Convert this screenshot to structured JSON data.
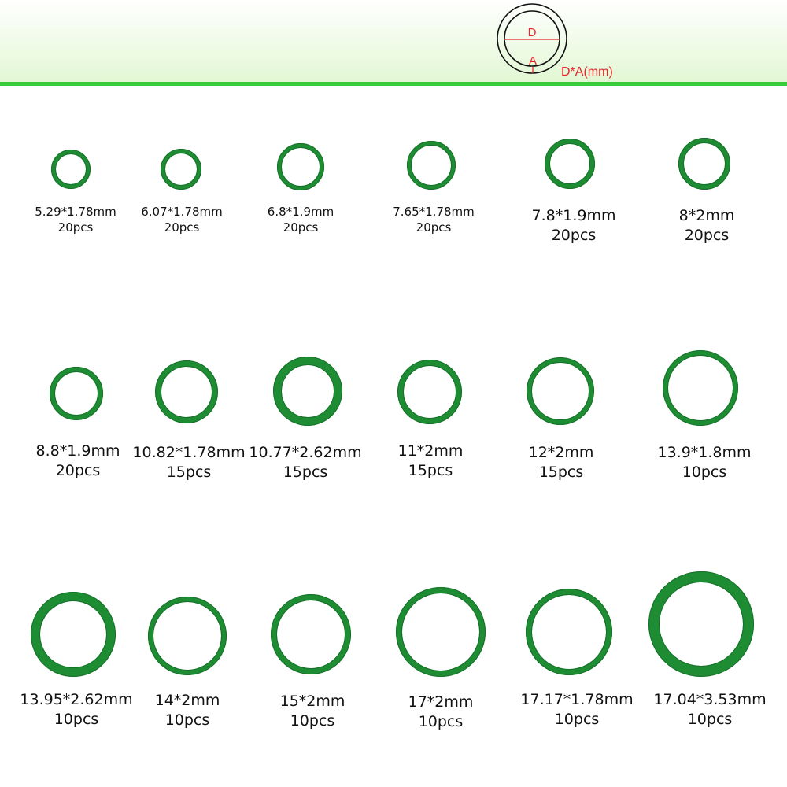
{
  "legend": {
    "diameter_symbol": "D",
    "thickness_symbol": "A",
    "formula": "D*A(mm)",
    "accent_color": "#e8262c"
  },
  "ring_color": "#1e8c32",
  "header_line_color": "#37cc3a",
  "items": [
    {
      "size": "5.29*1.78mm",
      "qty": "20pcs"
    },
    {
      "size": "6.07*1.78mm",
      "qty": "20pcs"
    },
    {
      "size": "6.8*1.9mm",
      "qty": "20pcs"
    },
    {
      "size": "7.65*1.78mm",
      "qty": "20pcs"
    },
    {
      "size": "7.8*1.9mm",
      "qty": "20pcs"
    },
    {
      "size": "8*2mm",
      "qty": "20pcs"
    },
    {
      "size": "8.8*1.9mm",
      "qty": "20pcs"
    },
    {
      "size": "10.82*1.78mm",
      "qty": "15pcs"
    },
    {
      "size": "10.77*2.62mm",
      "qty": "15pcs"
    },
    {
      "size": "11*2mm",
      "qty": "15pcs"
    },
    {
      "size": "12*2mm",
      "qty": "15pcs"
    },
    {
      "size": "13.9*1.8mm",
      "qty": "10pcs"
    },
    {
      "size": "13.95*2.62mm",
      "qty": "10pcs"
    },
    {
      "size": "14*2mm",
      "qty": "10pcs"
    },
    {
      "size": "15*2mm",
      "qty": "10pcs"
    },
    {
      "size": "17*2mm",
      "qty": "10pcs"
    },
    {
      "size": "17.17*1.78mm",
      "qty": "10pcs"
    },
    {
      "size": "17.04*3.53mm",
      "qty": "10pcs"
    }
  ]
}
